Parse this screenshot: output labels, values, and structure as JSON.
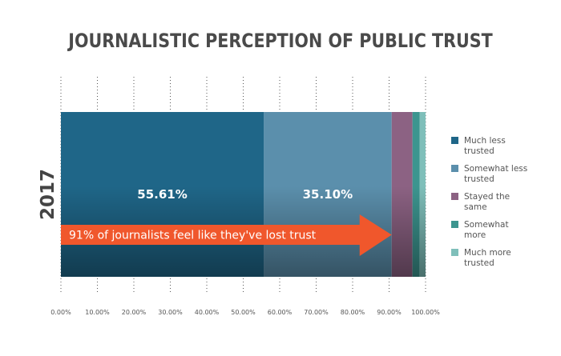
{
  "chart_data": {
    "type": "bar",
    "orientation": "horizontal-stacked-100",
    "title": "JOURNALISTIC PERCEPTION OF PUBLIC TRUST",
    "categories": [
      "2017"
    ],
    "series": [
      {
        "name": "Much less trusted",
        "name_lines": [
          "Much less",
          "trusted"
        ],
        "values": [
          55.61
        ],
        "label": "55.61%",
        "color": "#1f6688"
      },
      {
        "name": "Somewhat less trusted",
        "name_lines": [
          "Somewhat less",
          "trusted"
        ],
        "values": [
          35.1
        ],
        "label": "35.10%",
        "color": "#5b8fac"
      },
      {
        "name": "Stayed the same",
        "name_lines": [
          "Stayed the",
          "same"
        ],
        "values": [
          5.7
        ],
        "label": "",
        "color": "#8c6283"
      },
      {
        "name": "Somewhat more",
        "name_lines": [
          "Somewhat",
          "more"
        ],
        "values": [
          2.0
        ],
        "label": "",
        "color": "#3c958f"
      },
      {
        "name": "Much more trusted",
        "name_lines": [
          "Much more",
          "trusted"
        ],
        "values": [
          1.59
        ],
        "label": "",
        "color": "#7fbfba"
      }
    ],
    "xlim": [
      0,
      100
    ],
    "x_ticks": [
      0,
      10,
      20,
      30,
      40,
      50,
      60,
      70,
      80,
      90,
      100
    ],
    "x_tick_labels": [
      "0.00%",
      "10.00%",
      "20.00%",
      "30.00%",
      "40.00%",
      "50.00%",
      "60.00%",
      "70.00%",
      "80.00%",
      "90.00%",
      "100.00%"
    ],
    "grid": "vertical-dotted",
    "legend": "right",
    "annotation": {
      "text": "91% of journalists feel like they've lost trust",
      "style": "arrow",
      "color": "#f0572c",
      "from": 0,
      "to": 90.71
    }
  }
}
